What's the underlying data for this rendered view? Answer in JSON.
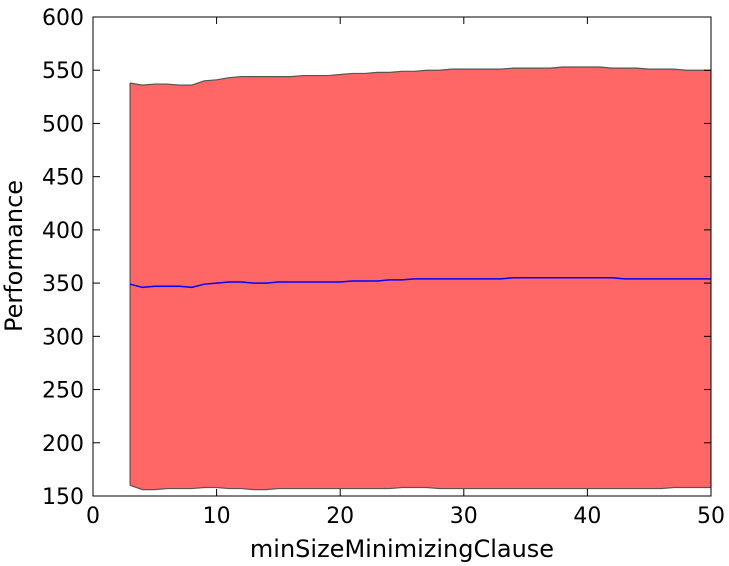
{
  "chart_data": {
    "type": "area",
    "title": "",
    "xlabel": "minSizeMinimizingClause",
    "ylabel": "Performance",
    "xlim": [
      0,
      50
    ],
    "ylim": [
      150,
      600
    ],
    "xticks": [
      0,
      10,
      20,
      30,
      40,
      50
    ],
    "yticks": [
      150,
      200,
      250,
      300,
      350,
      400,
      450,
      500,
      550,
      600
    ],
    "grid": false,
    "legend": "none",
    "colors": {
      "band": "#ff6666",
      "band_edge": "#555555",
      "mean": "#0000ff"
    },
    "series": [
      {
        "kind": "band",
        "x": [
          3,
          4,
          5,
          6,
          7,
          8,
          9,
          10,
          11,
          12,
          13,
          14,
          15,
          16,
          17,
          18,
          19,
          20,
          21,
          22,
          23,
          24,
          25,
          26,
          27,
          28,
          29,
          30,
          31,
          32,
          33,
          34,
          35,
          36,
          37,
          38,
          39,
          40,
          41,
          42,
          43,
          44,
          45,
          46,
          47,
          48,
          49,
          50
        ],
        "upper": [
          538,
          536,
          537,
          537,
          536,
          536,
          540,
          541,
          543,
          544,
          544,
          544,
          544,
          544,
          545,
          545,
          545,
          546,
          547,
          547,
          548,
          548,
          549,
          549,
          550,
          550,
          551,
          551,
          551,
          551,
          551,
          552,
          552,
          552,
          552,
          553,
          553,
          553,
          553,
          552,
          552,
          552,
          551,
          551,
          551,
          550,
          550,
          550
        ],
        "lower": [
          160,
          156,
          156,
          157,
          157,
          157,
          158,
          158,
          157,
          157,
          156,
          156,
          157,
          157,
          157,
          157,
          157,
          157,
          157,
          157,
          157,
          157,
          158,
          158,
          158,
          157,
          157,
          157,
          157,
          157,
          157,
          157,
          157,
          157,
          157,
          157,
          157,
          157,
          157,
          157,
          157,
          157,
          157,
          157,
          158,
          158,
          158,
          158
        ]
      },
      {
        "kind": "line",
        "x": [
          3,
          4,
          5,
          6,
          7,
          8,
          9,
          10,
          11,
          12,
          13,
          14,
          15,
          16,
          17,
          18,
          19,
          20,
          21,
          22,
          23,
          24,
          25,
          26,
          27,
          28,
          29,
          30,
          31,
          32,
          33,
          34,
          35,
          36,
          37,
          38,
          39,
          40,
          41,
          42,
          43,
          44,
          45,
          46,
          47,
          48,
          49,
          50
        ],
        "values": [
          349,
          346,
          347,
          347,
          347,
          346,
          349,
          350,
          351,
          351,
          350,
          350,
          351,
          351,
          351,
          351,
          351,
          351,
          352,
          352,
          352,
          353,
          353,
          354,
          354,
          354,
          354,
          354,
          354,
          354,
          354,
          355,
          355,
          355,
          355,
          355,
          355,
          355,
          355,
          355,
          354,
          354,
          354,
          354,
          354,
          354,
          354,
          354
        ]
      }
    ]
  }
}
